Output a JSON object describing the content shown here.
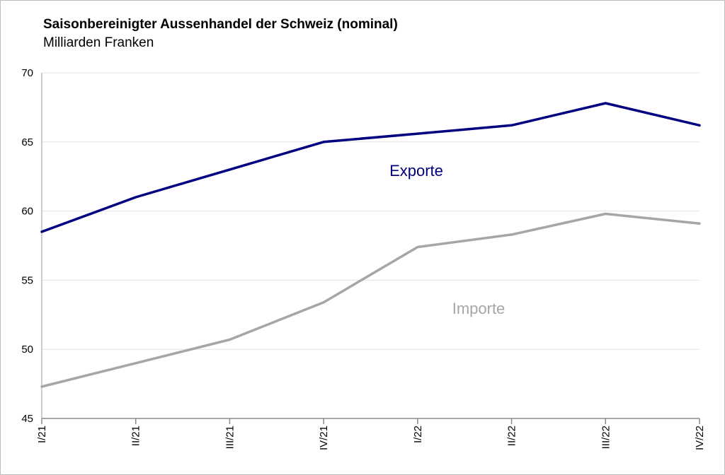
{
  "chart_data": {
    "type": "line",
    "title": "Saisonbereinigter Aussenhandel der Schweiz (nominal)",
    "subtitle": "Milliarden Franken",
    "xlabel": "",
    "ylabel": "",
    "categories": [
      "I/21",
      "II/21",
      "III/21",
      "IV/21",
      "I/22",
      "II/22",
      "III/22",
      "IV/22"
    ],
    "ylim": [
      45,
      70
    ],
    "yticks": [
      45,
      50,
      55,
      60,
      65,
      70
    ],
    "grid": true,
    "legend": "inline labels",
    "series": [
      {
        "name": "Exporte",
        "color": "#000080",
        "values": [
          58.5,
          61.0,
          63.0,
          65.0,
          65.6,
          66.2,
          67.8,
          66.2
        ]
      },
      {
        "name": "Importe",
        "color": "#a6a6a6",
        "values": [
          47.3,
          49.0,
          50.7,
          53.4,
          57.4,
          58.3,
          59.8,
          59.1
        ]
      }
    ]
  }
}
